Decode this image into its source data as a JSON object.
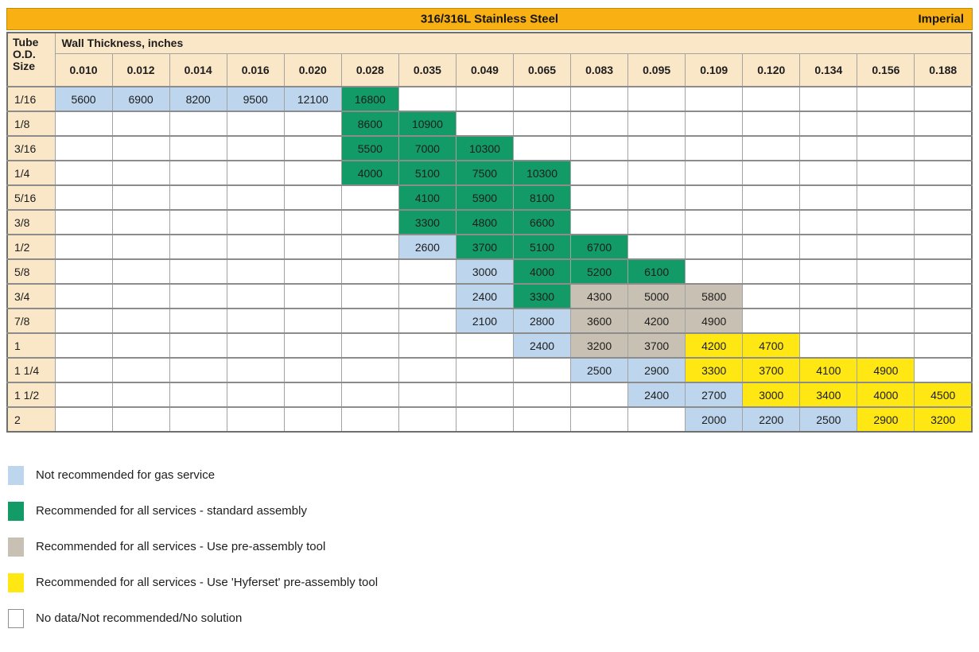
{
  "title_bar": {
    "title": "316/316L Stainless Steel",
    "unit_label": "Imperial"
  },
  "table": {
    "corner_label": "Tube\nO.D.\nSize",
    "wall_thickness_label": "Wall Thickness, inches",
    "columns": [
      "0.010",
      "0.012",
      "0.014",
      "0.016",
      "0.020",
      "0.028",
      "0.035",
      "0.049",
      "0.065",
      "0.083",
      "0.095",
      "0.109",
      "0.120",
      "0.134",
      "0.156",
      "0.188"
    ],
    "rows": [
      {
        "label": "1/16",
        "cells": [
          {
            "v": "5600",
            "c": "blue"
          },
          {
            "v": "6900",
            "c": "blue"
          },
          {
            "v": "8200",
            "c": "blue"
          },
          {
            "v": "9500",
            "c": "blue"
          },
          {
            "v": "12100",
            "c": "blue"
          },
          {
            "v": "16800",
            "c": "green"
          },
          null,
          null,
          null,
          null,
          null,
          null,
          null,
          null,
          null,
          null
        ]
      },
      {
        "label": "1/8",
        "cells": [
          null,
          null,
          null,
          null,
          null,
          {
            "v": "8600",
            "c": "green"
          },
          {
            "v": "10900",
            "c": "green"
          },
          null,
          null,
          null,
          null,
          null,
          null,
          null,
          null,
          null
        ]
      },
      {
        "label": "3/16",
        "cells": [
          null,
          null,
          null,
          null,
          null,
          {
            "v": "5500",
            "c": "green"
          },
          {
            "v": "7000",
            "c": "green"
          },
          {
            "v": "10300",
            "c": "green"
          },
          null,
          null,
          null,
          null,
          null,
          null,
          null,
          null
        ]
      },
      {
        "label": "1/4",
        "cells": [
          null,
          null,
          null,
          null,
          null,
          {
            "v": "4000",
            "c": "green"
          },
          {
            "v": "5100",
            "c": "green"
          },
          {
            "v": "7500",
            "c": "green"
          },
          {
            "v": "10300",
            "c": "green"
          },
          null,
          null,
          null,
          null,
          null,
          null,
          null
        ]
      },
      {
        "label": "5/16",
        "cells": [
          null,
          null,
          null,
          null,
          null,
          null,
          {
            "v": "4100",
            "c": "green"
          },
          {
            "v": "5900",
            "c": "green"
          },
          {
            "v": "8100",
            "c": "green"
          },
          null,
          null,
          null,
          null,
          null,
          null,
          null
        ]
      },
      {
        "label": "3/8",
        "cells": [
          null,
          null,
          null,
          null,
          null,
          null,
          {
            "v": "3300",
            "c": "green"
          },
          {
            "v": "4800",
            "c": "green"
          },
          {
            "v": "6600",
            "c": "green"
          },
          null,
          null,
          null,
          null,
          null,
          null,
          null
        ]
      },
      {
        "label": "1/2",
        "cells": [
          null,
          null,
          null,
          null,
          null,
          null,
          {
            "v": "2600",
            "c": "blue"
          },
          {
            "v": "3700",
            "c": "green"
          },
          {
            "v": "5100",
            "c": "green"
          },
          {
            "v": "6700",
            "c": "green"
          },
          null,
          null,
          null,
          null,
          null,
          null
        ]
      },
      {
        "label": "5/8",
        "cells": [
          null,
          null,
          null,
          null,
          null,
          null,
          null,
          {
            "v": "3000",
            "c": "blue"
          },
          {
            "v": "4000",
            "c": "green"
          },
          {
            "v": "5200",
            "c": "green"
          },
          {
            "v": "6100",
            "c": "green"
          },
          null,
          null,
          null,
          null,
          null
        ]
      },
      {
        "label": "3/4",
        "cells": [
          null,
          null,
          null,
          null,
          null,
          null,
          null,
          {
            "v": "2400",
            "c": "blue"
          },
          {
            "v": "3300",
            "c": "green"
          },
          {
            "v": "4300",
            "c": "tan"
          },
          {
            "v": "5000",
            "c": "tan"
          },
          {
            "v": "5800",
            "c": "tan"
          },
          null,
          null,
          null,
          null
        ]
      },
      {
        "label": "7/8",
        "cells": [
          null,
          null,
          null,
          null,
          null,
          null,
          null,
          {
            "v": "2100",
            "c": "blue"
          },
          {
            "v": "2800",
            "c": "blue"
          },
          {
            "v": "3600",
            "c": "tan"
          },
          {
            "v": "4200",
            "c": "tan"
          },
          {
            "v": "4900",
            "c": "tan"
          },
          null,
          null,
          null,
          null
        ]
      },
      {
        "label": "1",
        "cells": [
          null,
          null,
          null,
          null,
          null,
          null,
          null,
          null,
          {
            "v": "2400",
            "c": "blue"
          },
          {
            "v": "3200",
            "c": "tan"
          },
          {
            "v": "3700",
            "c": "tan"
          },
          {
            "v": "4200",
            "c": "yellow"
          },
          {
            "v": "4700",
            "c": "yellow"
          },
          null,
          null,
          null
        ]
      },
      {
        "label": "1 1/4",
        "cells": [
          null,
          null,
          null,
          null,
          null,
          null,
          null,
          null,
          null,
          {
            "v": "2500",
            "c": "blue"
          },
          {
            "v": "2900",
            "c": "blue"
          },
          {
            "v": "3300",
            "c": "yellow"
          },
          {
            "v": "3700",
            "c": "yellow"
          },
          {
            "v": "4100",
            "c": "yellow"
          },
          {
            "v": "4900",
            "c": "yellow"
          },
          null
        ]
      },
      {
        "label": "1 1/2",
        "cells": [
          null,
          null,
          null,
          null,
          null,
          null,
          null,
          null,
          null,
          null,
          {
            "v": "2400",
            "c": "blue"
          },
          {
            "v": "2700",
            "c": "blue"
          },
          {
            "v": "3000",
            "c": "yellow"
          },
          {
            "v": "3400",
            "c": "yellow"
          },
          {
            "v": "4000",
            "c": "yellow"
          },
          {
            "v": "4500",
            "c": "yellow"
          }
        ]
      },
      {
        "label": "2",
        "cells": [
          null,
          null,
          null,
          null,
          null,
          null,
          null,
          null,
          null,
          null,
          null,
          {
            "v": "2000",
            "c": "blue"
          },
          {
            "v": "2200",
            "c": "blue"
          },
          {
            "v": "2500",
            "c": "blue"
          },
          {
            "v": "2900",
            "c": "yellow"
          },
          {
            "v": "3200",
            "c": "yellow"
          }
        ]
      }
    ]
  },
  "legend": {
    "items": [
      {
        "key": "blue",
        "label": "Not recommended for gas service"
      },
      {
        "key": "green",
        "label": "Recommended for all services - standard assembly"
      },
      {
        "key": "tan",
        "label": "Recommended for all services -  Use pre-assembly tool"
      },
      {
        "key": "yellow",
        "label": "Recommended for all services - Use 'Hyferset' pre-assembly tool"
      },
      {
        "key": "white",
        "label": "No data/Not recommended/No solution"
      }
    ]
  },
  "colors": {
    "blue": "#BDD6EE",
    "green": "#129B67",
    "tan": "#C8C0B2",
    "yellow": "#FFE713",
    "white": "#FFFFFF",
    "cream": "#FAE7C7",
    "orange": "#F8B013"
  }
}
